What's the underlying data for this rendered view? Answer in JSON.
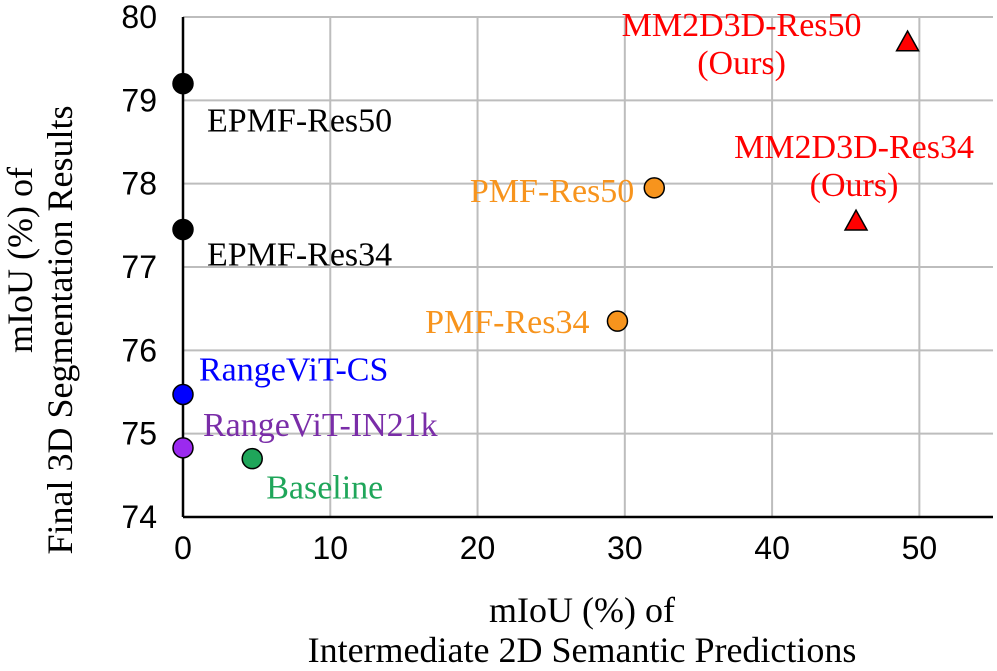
{
  "chart_data": {
    "type": "scatter",
    "xlabel": [
      "mIoU (%) of",
      "Intermediate 2D Semantic Predictions"
    ],
    "ylabel": [
      "mIoU (%) of",
      "Final 3D Segmentation Results"
    ],
    "xlim": [
      0,
      55
    ],
    "ylim": [
      74,
      80
    ],
    "xticks": [
      0,
      10,
      20,
      30,
      40,
      50
    ],
    "yticks": [
      74,
      75,
      76,
      77,
      78,
      79,
      80
    ],
    "xtick_labels": [
      "0",
      "10",
      "20",
      "30",
      "40",
      "50"
    ],
    "ytick_labels": [
      "74",
      "75",
      "76",
      "77",
      "78",
      "79",
      "80"
    ],
    "grid": true,
    "points": [
      {
        "name": "EPMF-Res50",
        "label_lines": [
          "EPMF-Res50"
        ],
        "x": 0,
        "y": 79.2,
        "color": "#000000",
        "text_color": "#000000",
        "marker": "circle"
      },
      {
        "name": "EPMF-Res34",
        "label_lines": [
          "EPMF-Res34"
        ],
        "x": 0,
        "y": 77.45,
        "color": "#000000",
        "text_color": "#000000",
        "marker": "circle"
      },
      {
        "name": "RangeViT-CS",
        "label_lines": [
          "RangeViT-CS"
        ],
        "x": 0,
        "y": 75.47,
        "color": "#0000ff",
        "text_color": "#0000ff",
        "marker": "circle"
      },
      {
        "name": "RangeViT-IN21k",
        "label_lines": [
          "RangeViT-IN21k"
        ],
        "x": 0,
        "y": 74.83,
        "color": "#9b2aef",
        "text_color": "#7a2da8",
        "marker": "circle"
      },
      {
        "name": "Baseline",
        "label_lines": [
          "Baseline"
        ],
        "x": 4.7,
        "y": 74.7,
        "color": "#1fa65a",
        "text_color": "#1fa65a",
        "marker": "circle"
      },
      {
        "name": "PMF-Res34",
        "label_lines": [
          "PMF-Res34"
        ],
        "x": 29.5,
        "y": 76.35,
        "color": "#f7941d",
        "text_color": "#f7941d",
        "marker": "circle"
      },
      {
        "name": "PMF-Res50",
        "label_lines": [
          "PMF-Res50"
        ],
        "x": 32.0,
        "y": 77.95,
        "color": "#f7941d",
        "text_color": "#f7941d",
        "marker": "circle"
      },
      {
        "name": "MM2D3D-Res34",
        "label_lines": [
          "MM2D3D-Res34",
          "(Ours)"
        ],
        "x": 45.7,
        "y": 77.55,
        "color": "#ff0000",
        "text_color": "#ff0000",
        "marker": "triangle"
      },
      {
        "name": "MM2D3D-Res50",
        "label_lines": [
          "MM2D3D-Res50",
          "(Ours)"
        ],
        "x": 49.2,
        "y": 79.7,
        "color": "#ff0000",
        "text_color": "#ff0000",
        "marker": "triangle"
      }
    ]
  }
}
